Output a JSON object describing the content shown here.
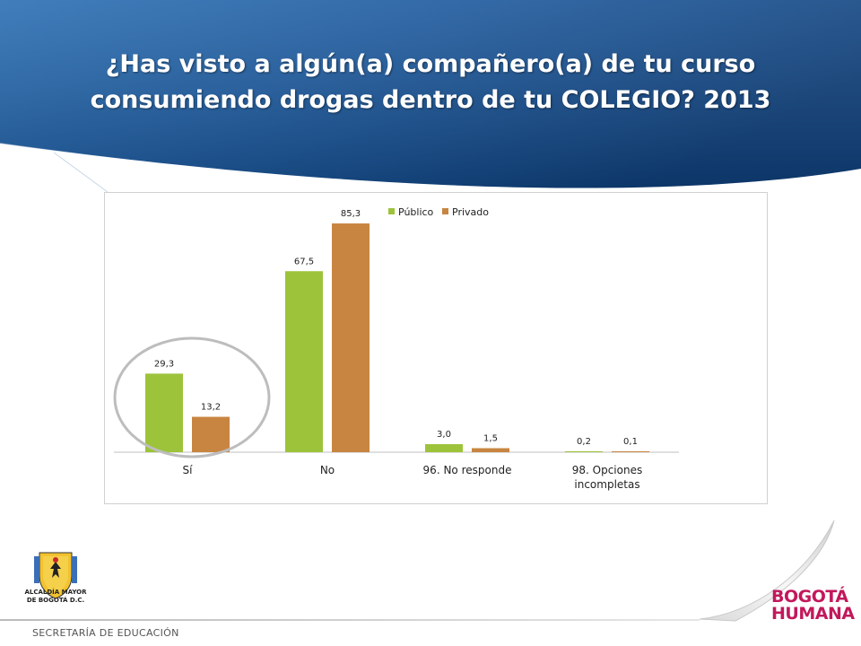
{
  "slide": {
    "title_line1": "¿Has visto a algún(a) compañero(a) de tu curso",
    "title_line2": "consumiendo drogas dentro de tu COLEGIO? 2013"
  },
  "footer": {
    "logo_caption_line1": "ALCALDÍA MAYOR",
    "logo_caption_line2": "DE BOGOTÁ D.C.",
    "department": "SECRETARÍA DE EDUCACIÓN",
    "brand_line1": "BOGOTÁ",
    "brand_line2": "HUMANA"
  },
  "colors": {
    "header_blue": "#1f5a97",
    "publico": "#9dc33b",
    "privado": "#c88541",
    "highlight_circle": "#bdbdbd",
    "brand": "#c2185b"
  },
  "chart_data": {
    "type": "bar",
    "categories": [
      "Sí",
      "No",
      "96. No responde",
      "98. Opciones incompletas"
    ],
    "category_lines": [
      [
        "Sí"
      ],
      [
        "No"
      ],
      [
        "96. No responde"
      ],
      [
        "98. Opciones",
        "incompletas"
      ]
    ],
    "series": [
      {
        "name": "Público",
        "color": "#9dc33b",
        "values": [
          29.3,
          67.5,
          3.0,
          0.2
        ],
        "labels": [
          "29,3",
          "67,5",
          "3,0",
          "0,2"
        ]
      },
      {
        "name": "Privado",
        "color": "#c88541",
        "values": [
          13.2,
          85.3,
          1.5,
          0.1
        ],
        "labels": [
          "13,2",
          "85,3",
          "1,5",
          "0,1"
        ]
      }
    ],
    "ylim": [
      0,
      90
    ],
    "legend": "top",
    "highlight": {
      "category": "Sí",
      "shape": "circle"
    },
    "grid": false
  }
}
